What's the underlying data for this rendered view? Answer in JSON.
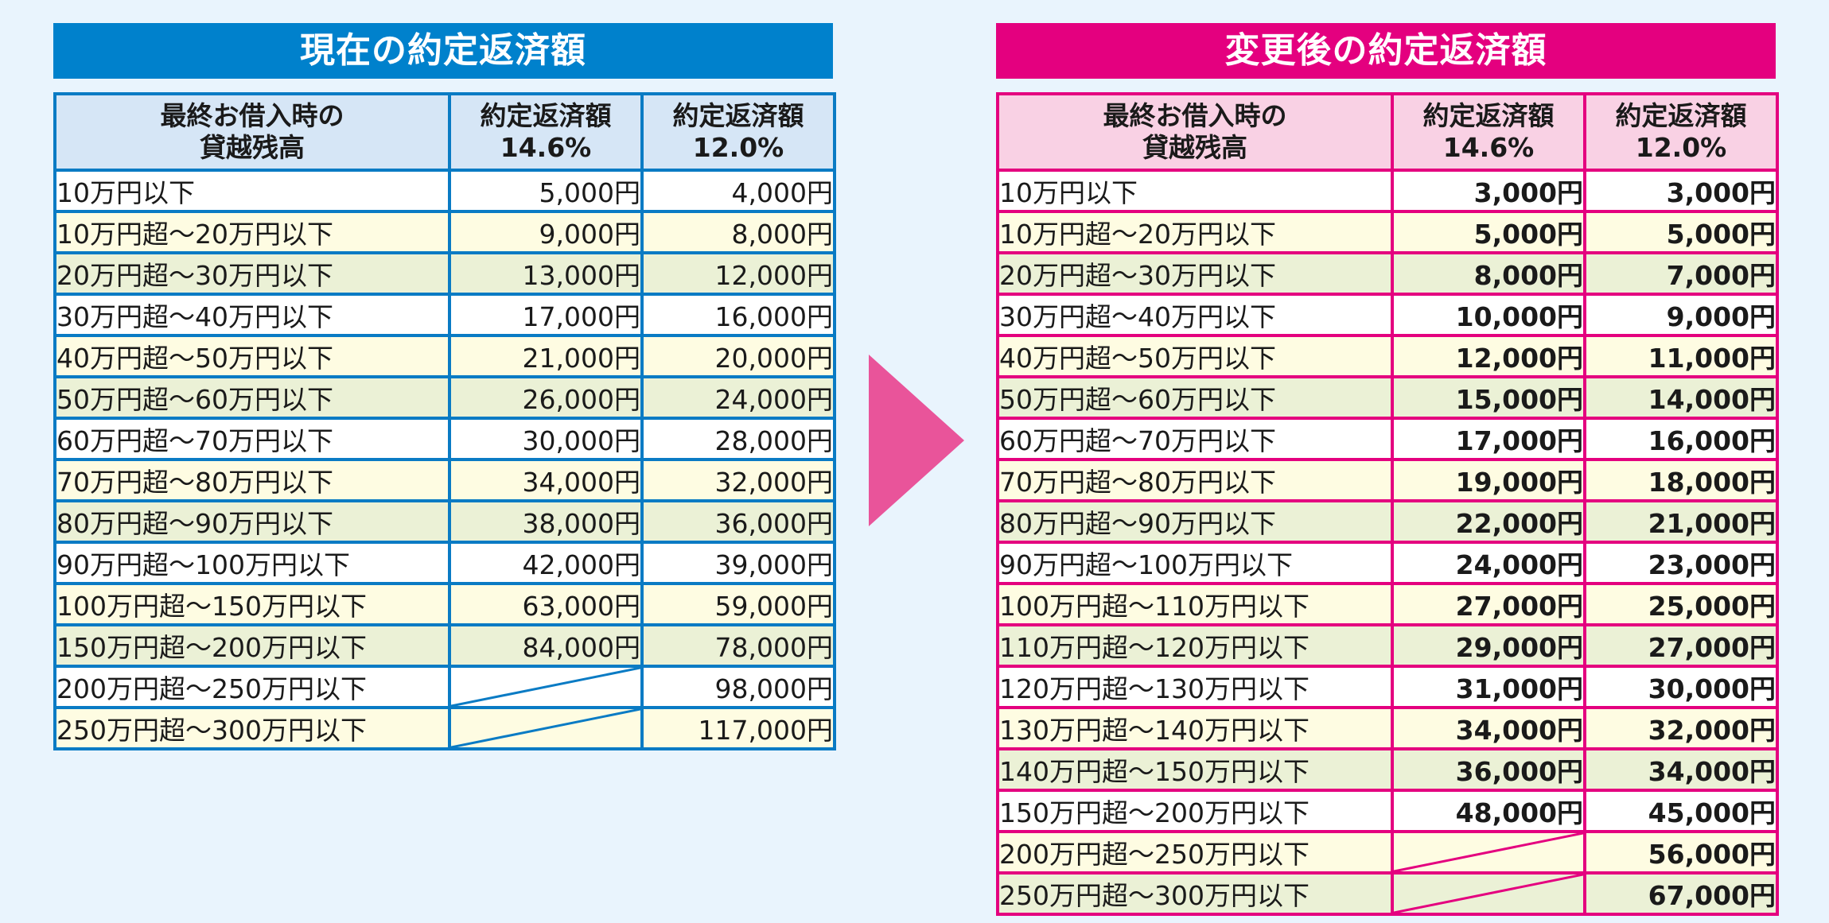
{
  "left": {
    "title": "現在の約定返済額",
    "headers": {
      "balance_line1": "最終お借入時の",
      "balance_line2": "貸越残高",
      "col1_line1": "約定返済額",
      "col1_line2": "14.6%",
      "col2_line1": "約定返済額",
      "col2_line2": "12.0%"
    },
    "rows": [
      {
        "label": "10万円以下",
        "v1": "5,000円",
        "v2": "4,000円",
        "bg": "white"
      },
      {
        "label": "10万円超～20万円以下",
        "v1": "9,000円",
        "v2": "8,000円",
        "bg": "yellow"
      },
      {
        "label": "20万円超～30万円以下",
        "v1": "13,000円",
        "v2": "12,000円",
        "bg": "green"
      },
      {
        "label": "30万円超～40万円以下",
        "v1": "17,000円",
        "v2": "16,000円",
        "bg": "white"
      },
      {
        "label": "40万円超～50万円以下",
        "v1": "21,000円",
        "v2": "20,000円",
        "bg": "yellow"
      },
      {
        "label": "50万円超～60万円以下",
        "v1": "26,000円",
        "v2": "24,000円",
        "bg": "green"
      },
      {
        "label": "60万円超～70万円以下",
        "v1": "30,000円",
        "v2": "28,000円",
        "bg": "white"
      },
      {
        "label": "70万円超～80万円以下",
        "v1": "34,000円",
        "v2": "32,000円",
        "bg": "yellow"
      },
      {
        "label": "80万円超～90万円以下",
        "v1": "38,000円",
        "v2": "36,000円",
        "bg": "green"
      },
      {
        "label": "90万円超～100万円以下",
        "v1": "42,000円",
        "v2": "39,000円",
        "bg": "white"
      },
      {
        "label": "100万円超～150万円以下",
        "v1": "63,000円",
        "v2": "59,000円",
        "bg": "yellow"
      },
      {
        "label": "150万円超～200万円以下",
        "v1": "84,000円",
        "v2": "78,000円",
        "bg": "green"
      },
      {
        "label": "200万円超～250万円以下",
        "v1": null,
        "v2": "98,000円",
        "bg": "white"
      },
      {
        "label": "250万円超～300万円以下",
        "v1": null,
        "v2": "117,000円",
        "bg": "yellow"
      }
    ]
  },
  "right": {
    "title": "変更後の約定返済額",
    "headers": {
      "balance_line1": "最終お借入時の",
      "balance_line2": "貸越残高",
      "col1_line1": "約定返済額",
      "col1_line2": "14.6%",
      "col2_line1": "約定返済額",
      "col2_line2": "12.0%"
    },
    "rows": [
      {
        "label": "10万円以下",
        "v1": "3,000円",
        "v2": "3,000円",
        "bg": "white"
      },
      {
        "label": "10万円超～20万円以下",
        "v1": "5,000円",
        "v2": "5,000円",
        "bg": "yellow"
      },
      {
        "label": "20万円超～30万円以下",
        "v1": "8,000円",
        "v2": "7,000円",
        "bg": "green"
      },
      {
        "label": "30万円超～40万円以下",
        "v1": "10,000円",
        "v2": "9,000円",
        "bg": "white"
      },
      {
        "label": "40万円超～50万円以下",
        "v1": "12,000円",
        "v2": "11,000円",
        "bg": "yellow"
      },
      {
        "label": "50万円超～60万円以下",
        "v1": "15,000円",
        "v2": "14,000円",
        "bg": "green"
      },
      {
        "label": "60万円超～70万円以下",
        "v1": "17,000円",
        "v2": "16,000円",
        "bg": "white"
      },
      {
        "label": "70万円超～80万円以下",
        "v1": "19,000円",
        "v2": "18,000円",
        "bg": "yellow"
      },
      {
        "label": "80万円超～90万円以下",
        "v1": "22,000円",
        "v2": "21,000円",
        "bg": "green"
      },
      {
        "label": "90万円超～100万円以下",
        "v1": "24,000円",
        "v2": "23,000円",
        "bg": "white"
      },
      {
        "label": "100万円超～110万円以下",
        "v1": "27,000円",
        "v2": "25,000円",
        "bg": "yellow"
      },
      {
        "label": "110万円超～120万円以下",
        "v1": "29,000円",
        "v2": "27,000円",
        "bg": "green"
      },
      {
        "label": "120万円超～130万円以下",
        "v1": "31,000円",
        "v2": "30,000円",
        "bg": "white"
      },
      {
        "label": "130万円超～140万円以下",
        "v1": "34,000円",
        "v2": "32,000円",
        "bg": "yellow"
      },
      {
        "label": "140万円超～150万円以下",
        "v1": "36,000円",
        "v2": "34,000円",
        "bg": "green"
      },
      {
        "label": "150万円超～200万円以下",
        "v1": "48,000円",
        "v2": "45,000円",
        "bg": "white"
      },
      {
        "label": "200万円超～250万円以下",
        "v1": null,
        "v2": "56,000円",
        "bg": "yellow"
      },
      {
        "label": "250万円超～300万円以下",
        "v1": null,
        "v2": "67,000円",
        "bg": "green"
      }
    ]
  },
  "colors": {
    "current_accent": "#0081cc",
    "changed_accent": "#e4007f",
    "arrow": "#e9549a",
    "page_background": "#e9f4fd"
  },
  "icons": {
    "transition_arrow": "right-triangle-arrow"
  }
}
